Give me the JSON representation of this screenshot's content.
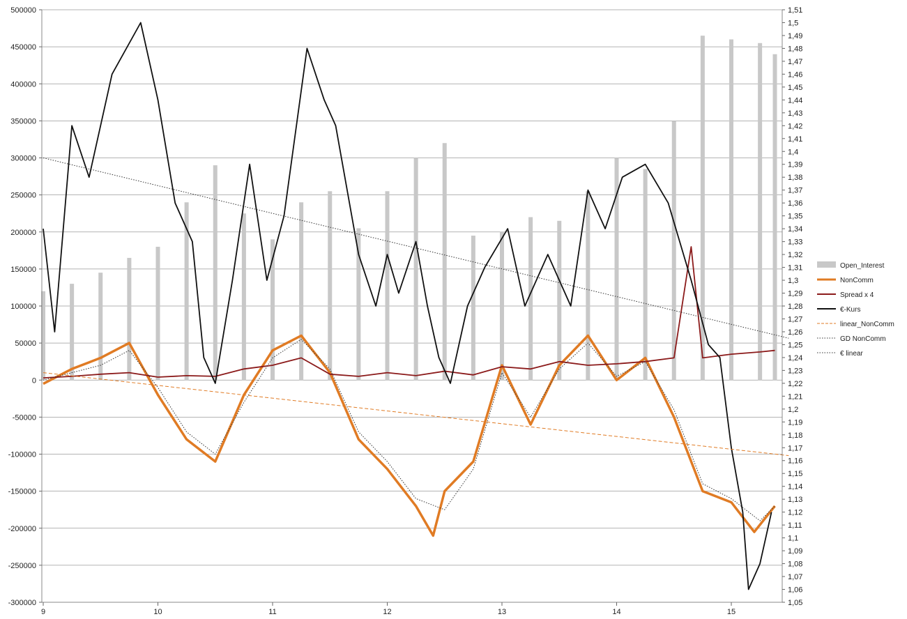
{
  "chart_data": {
    "type": "bar+line",
    "x_axis": {
      "ticks": [
        "9",
        "10",
        "11",
        "12",
        "13",
        "14",
        "15"
      ],
      "xlim": [
        9,
        15.5
      ]
    },
    "y_axis_left": {
      "ticks": [
        "500000",
        "450000",
        "400000",
        "350000",
        "300000",
        "250000",
        "200000",
        "150000",
        "100000",
        "50000",
        "0",
        "-50000",
        "-100000",
        "-150000",
        "-200000",
        "-250000",
        "-300000"
      ],
      "ylim": [
        -300000,
        500000
      ]
    },
    "y_axis_right": {
      "ticks": [
        "1,51",
        "1,5",
        "1,49",
        "1,48",
        "1,47",
        "1,46",
        "1,45",
        "1,44",
        "1,43",
        "1,42",
        "1,41",
        "1,4",
        "1,39",
        "1,38",
        "1,37",
        "1,36",
        "1,35",
        "1,34",
        "1,33",
        "1,32",
        "1,31",
        "1,3",
        "1,29",
        "1,28",
        "1,27",
        "1,26",
        "1,25",
        "1,24",
        "1,23",
        "1,22",
        "1,21",
        "1,2",
        "1,19",
        "1,18",
        "1,17",
        "1,16",
        "1,15",
        "1,14",
        "1,13",
        "1,12",
        "1,11",
        "1,1",
        "1,09",
        "1,08",
        "1,07",
        "1,06",
        "1,05"
      ],
      "ylim": [
        1.05,
        1.51
      ]
    },
    "grid": true,
    "legend_position": "right",
    "legend": [
      "Open_Interest",
      "NonComm",
      "Spread x 4",
      "€-Kurs",
      "linear_NonComm",
      "GD NonComm",
      "€ linear"
    ],
    "series": [
      {
        "name": "Open_Interest",
        "type": "bar",
        "axis": "left",
        "color": "#c8c8c8",
        "x": [
          9.0,
          9.25,
          9.5,
          9.75,
          10.0,
          10.25,
          10.5,
          10.75,
          11.0,
          11.25,
          11.5,
          11.75,
          12.0,
          12.25,
          12.5,
          12.75,
          13.0,
          13.25,
          13.5,
          13.75,
          14.0,
          14.25,
          14.5,
          14.75,
          15.0,
          15.25,
          15.38
        ],
        "values": [
          120000,
          130000,
          145000,
          165000,
          180000,
          240000,
          290000,
          225000,
          190000,
          240000,
          255000,
          205000,
          255000,
          300000,
          320000,
          195000,
          200000,
          220000,
          215000,
          255000,
          300000,
          285000,
          350000,
          465000,
          460000,
          455000,
          440000
        ]
      },
      {
        "name": "NonComm",
        "type": "line",
        "axis": "left",
        "color": "#e07b24",
        "x": [
          9.0,
          9.25,
          9.5,
          9.75,
          10.0,
          10.25,
          10.5,
          10.75,
          11.0,
          11.25,
          11.5,
          11.75,
          12.0,
          12.25,
          12.4,
          12.5,
          12.75,
          13.0,
          13.25,
          13.5,
          13.75,
          14.0,
          14.25,
          14.5,
          14.75,
          15.0,
          15.2,
          15.38
        ],
        "values": [
          -5000,
          15000,
          30000,
          50000,
          -20000,
          -80000,
          -110000,
          -20000,
          40000,
          60000,
          10000,
          -80000,
          -120000,
          -170000,
          -210000,
          -150000,
          -110000,
          20000,
          -60000,
          20000,
          60000,
          0,
          30000,
          -50000,
          -150000,
          -165000,
          -205000,
          -170000
        ]
      },
      {
        "name": "Spread x 4",
        "type": "line",
        "axis": "left",
        "color": "#8b1a1a",
        "x": [
          9.0,
          9.25,
          9.5,
          9.75,
          10.0,
          10.25,
          10.5,
          10.75,
          11.0,
          11.25,
          11.5,
          11.75,
          12.0,
          12.25,
          12.5,
          12.75,
          13.0,
          13.25,
          13.5,
          13.75,
          14.0,
          14.25,
          14.5,
          14.65,
          14.75,
          15.0,
          15.25,
          15.38
        ],
        "values": [
          3000,
          5000,
          8000,
          10000,
          4000,
          6000,
          5000,
          15000,
          20000,
          30000,
          8000,
          5000,
          10000,
          6000,
          12000,
          7000,
          18000,
          15000,
          25000,
          20000,
          22000,
          25000,
          30000,
          180000,
          30000,
          35000,
          38000,
          40000
        ]
      },
      {
        "name": "€-Kurs",
        "type": "line",
        "axis": "right",
        "color": "#111111",
        "x": [
          9.0,
          9.1,
          9.25,
          9.4,
          9.6,
          9.85,
          10.0,
          10.15,
          10.3,
          10.4,
          10.5,
          10.65,
          10.8,
          10.95,
          11.1,
          11.3,
          11.45,
          11.55,
          11.75,
          11.9,
          12.0,
          12.1,
          12.25,
          12.35,
          12.45,
          12.55,
          12.7,
          12.85,
          13.05,
          13.2,
          13.4,
          13.6,
          13.75,
          13.9,
          14.05,
          14.25,
          14.45,
          14.65,
          14.8,
          14.9,
          15.0,
          15.1,
          15.15,
          15.25,
          15.35
        ],
        "values": [
          1.34,
          1.26,
          1.42,
          1.38,
          1.46,
          1.5,
          1.44,
          1.36,
          1.33,
          1.24,
          1.22,
          1.3,
          1.39,
          1.3,
          1.35,
          1.48,
          1.44,
          1.42,
          1.32,
          1.28,
          1.32,
          1.29,
          1.33,
          1.28,
          1.24,
          1.22,
          1.28,
          1.31,
          1.34,
          1.28,
          1.32,
          1.28,
          1.37,
          1.34,
          1.38,
          1.39,
          1.36,
          1.3,
          1.25,
          1.24,
          1.17,
          1.12,
          1.06,
          1.08,
          1.12
        ]
      },
      {
        "name": "linear_NonComm",
        "type": "line",
        "axis": "left",
        "color": "#e07b24",
        "dash": "dashed",
        "x": [
          9.0,
          15.5
        ],
        "values": [
          10000,
          -102000
        ]
      },
      {
        "name": "GD NonComm",
        "type": "line",
        "axis": "left",
        "color": "#333333",
        "dash": "dotted",
        "x": [
          9.0,
          9.5,
          9.75,
          10.0,
          10.25,
          10.5,
          10.75,
          11.0,
          11.25,
          11.5,
          11.75,
          12.0,
          12.25,
          12.5,
          12.75,
          13.0,
          13.25,
          13.5,
          13.75,
          14.0,
          14.25,
          14.5,
          14.75,
          15.0,
          15.25,
          15.38
        ],
        "values": [
          0,
          20000,
          40000,
          -10000,
          -70000,
          -100000,
          -30000,
          30000,
          55000,
          15000,
          -70000,
          -110000,
          -160000,
          -175000,
          -120000,
          10000,
          -50000,
          15000,
          50000,
          5000,
          25000,
          -40000,
          -140000,
          -160000,
          -190000,
          -170000
        ]
      },
      {
        "name": "€ linear",
        "type": "line",
        "axis": "right",
        "color": "#333333",
        "dash": "dotted",
        "x": [
          9.0,
          15.5
        ],
        "values": [
          1.395,
          1.255
        ]
      }
    ]
  }
}
